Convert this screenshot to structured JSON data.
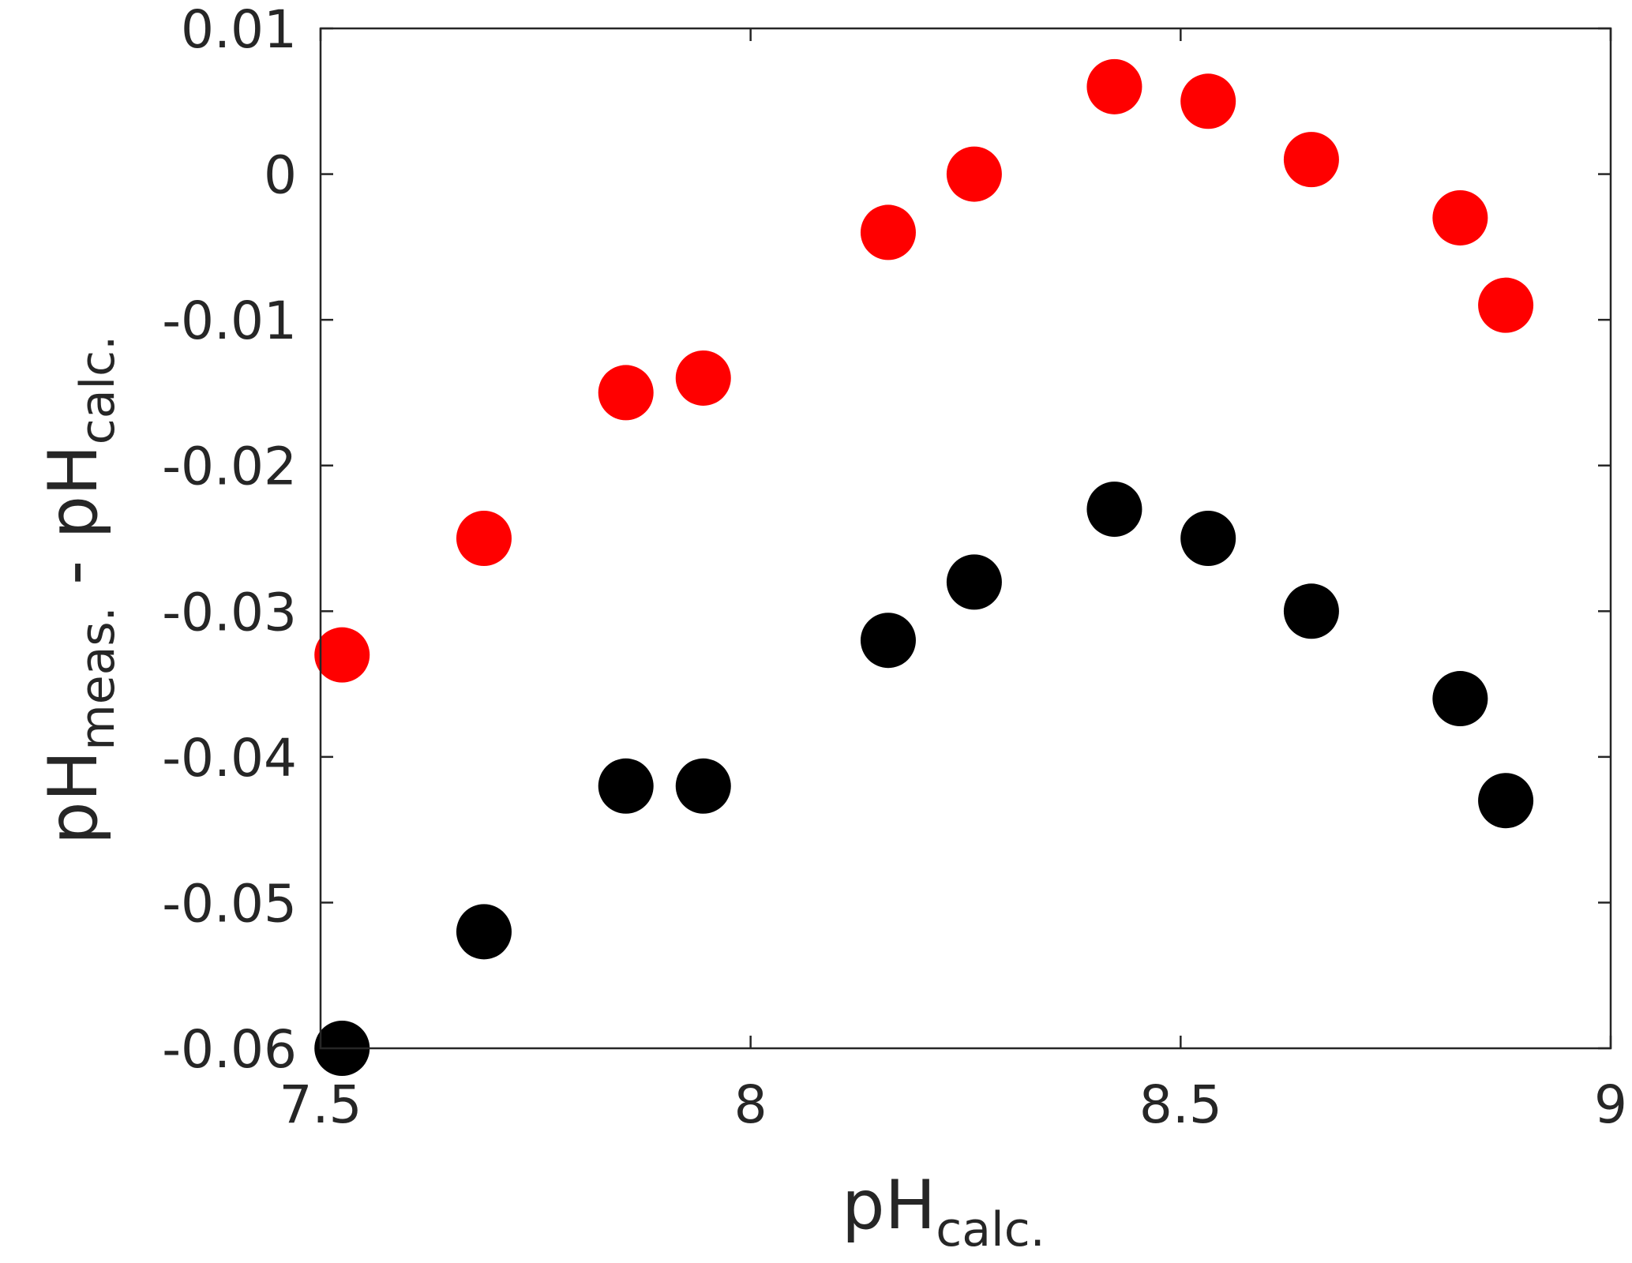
{
  "chart_data": {
    "type": "scatter",
    "xlabel": {
      "main": "pH",
      "sub": "calc."
    },
    "ylabel": {
      "main1": "pH",
      "sub1": "meas.",
      "sep": " - ",
      "main2": "pH",
      "sub2": "calc."
    },
    "xlim": [
      7.5,
      9
    ],
    "ylim": [
      -0.06,
      0.01
    ],
    "xticks": [
      7.5,
      8,
      8.5,
      9
    ],
    "xtick_labels": [
      "7.5",
      "8",
      "8.5",
      "9"
    ],
    "yticks": [
      0.01,
      0,
      -0.01,
      -0.02,
      -0.03,
      -0.04,
      -0.05,
      -0.06
    ],
    "ytick_labels": [
      "0.01",
      "0",
      "-0.01",
      "-0.02",
      "-0.03",
      "-0.04",
      "-0.05",
      "-0.06"
    ],
    "grid": false,
    "series": [
      {
        "color": "#ff0000",
        "x": [
          7.525,
          7.69,
          7.855,
          7.945,
          8.16,
          8.26,
          8.423,
          8.532,
          8.652,
          8.825,
          8.878
        ],
        "y": [
          -0.033,
          -0.025,
          -0.015,
          -0.014,
          -0.004,
          0.0,
          0.006,
          0.005,
          0.001,
          -0.003,
          -0.009
        ]
      },
      {
        "color": "#000000",
        "x": [
          7.525,
          7.69,
          7.855,
          7.945,
          8.16,
          8.26,
          8.423,
          8.532,
          8.652,
          8.825,
          8.878
        ],
        "y": [
          -0.06,
          -0.052,
          -0.042,
          -0.042,
          -0.032,
          -0.028,
          -0.023,
          -0.025,
          -0.03,
          -0.036,
          -0.043
        ]
      }
    ]
  }
}
